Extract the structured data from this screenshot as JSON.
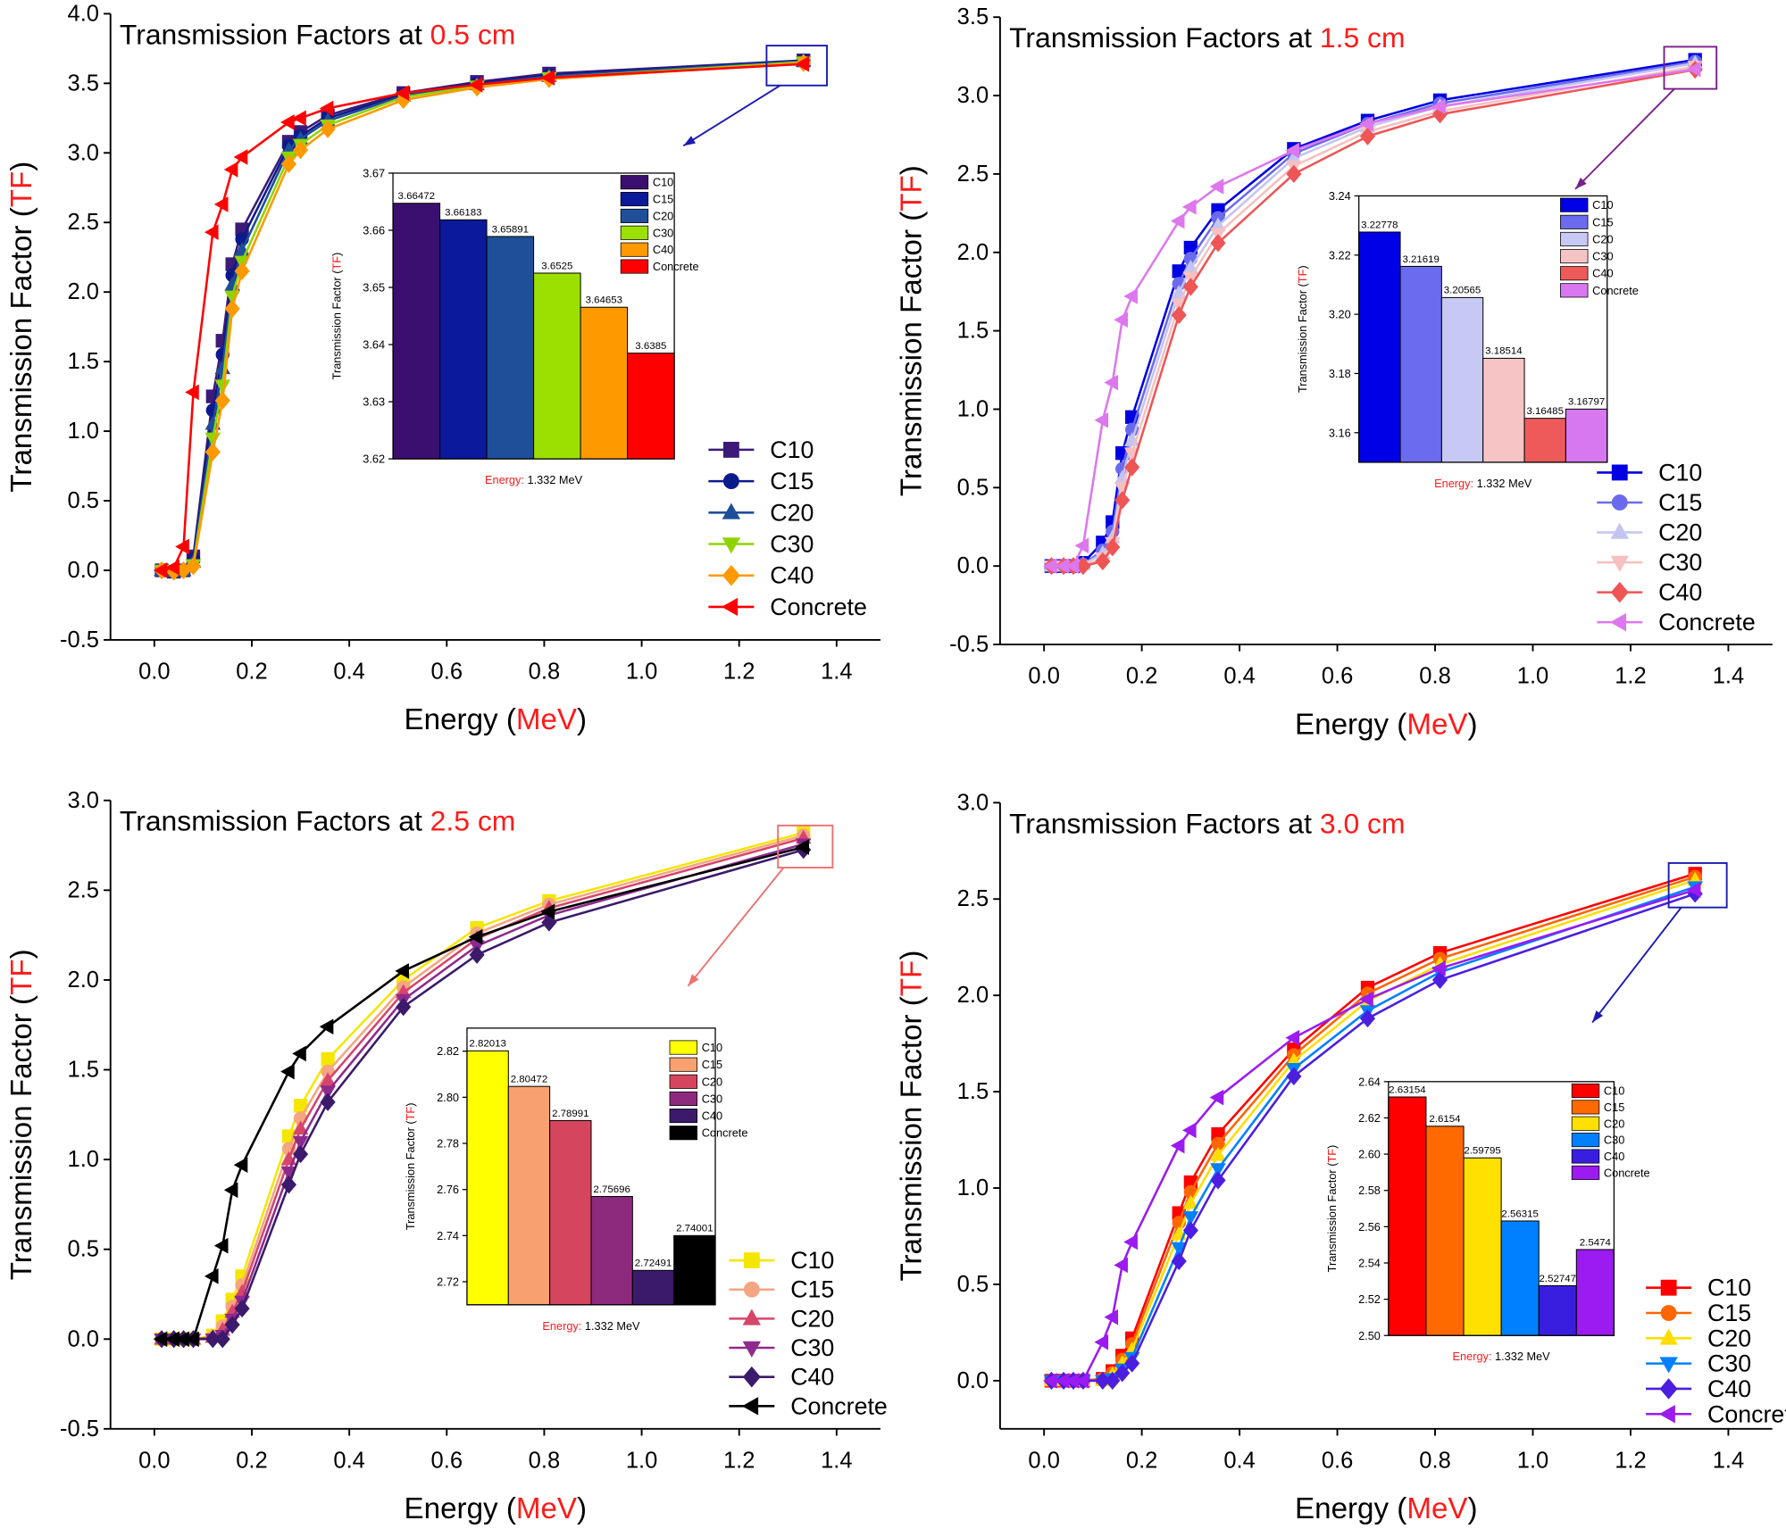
{
  "chart_data": [
    {
      "type": "line",
      "title": [
        "Transmission Factors at ",
        "0.5 cm"
      ],
      "xlabel": [
        "Energy (",
        "MeV",
        ")"
      ],
      "ylabel": [
        "Transmission Factor (",
        "TF",
        ")"
      ],
      "x": [
        0.015,
        0.04,
        0.06,
        0.08,
        0.12,
        0.14,
        0.16,
        0.18,
        0.276,
        0.3,
        0.356,
        0.511,
        0.662,
        0.81,
        1.332
      ],
      "xlim": [
        -0.09,
        1.49
      ],
      "xticks": [
        {
          "value": 0,
          "label": "0.0"
        },
        0.2,
        0.4,
        0.6,
        0.8,
        {
          "value": 1,
          "label": "1.0"
        },
        1.2,
        1.4
      ],
      "ylim": [
        -0.5,
        4.0
      ],
      "yticks": [
        -0.5,
        {
          "value": 0,
          "label": "0.0"
        },
        0.5,
        {
          "value": 1,
          "label": "1.0"
        },
        1.5,
        {
          "value": 2,
          "label": "2.0"
        },
        2.5,
        {
          "value": 3,
          "label": "3.0"
        },
        3.5,
        {
          "value": 4,
          "label": "4.0"
        }
      ],
      "legend": "lower right",
      "series": [
        {
          "name": "C10",
          "color": "#3d1a78",
          "marker": "square",
          "values": [
            0,
            -0.01,
            0,
            0.1,
            1.25,
            1.65,
            2.2,
            2.45,
            3.08,
            3.15,
            3.27,
            3.43,
            3.51,
            3.57,
            3.66472
          ]
        },
        {
          "name": "C15",
          "color": "#0d1a8c",
          "marker": "circle",
          "values": [
            0,
            -0.01,
            0,
            0.08,
            1.15,
            1.55,
            2.12,
            2.38,
            3.05,
            3.12,
            3.25,
            3.42,
            3.5,
            3.56,
            3.66183
          ]
        },
        {
          "name": "C20",
          "color": "#1f4e99",
          "marker": "triangle-up",
          "values": [
            0,
            -0.01,
            0,
            0.06,
            1.05,
            1.45,
            2.05,
            2.3,
            3.02,
            3.1,
            3.23,
            3.41,
            3.49,
            3.55,
            3.65891
          ]
        },
        {
          "name": "C30",
          "color": "#8fd400",
          "marker": "triangle-down",
          "values": [
            0,
            -0.01,
            0,
            0.04,
            0.95,
            1.33,
            1.97,
            2.22,
            2.97,
            3.06,
            3.2,
            3.4,
            3.48,
            3.54,
            3.6525
          ]
        },
        {
          "name": "C40",
          "color": "#ff9900",
          "marker": "diamond",
          "values": [
            0,
            -0.01,
            0,
            0.03,
            0.85,
            1.22,
            1.88,
            2.15,
            2.92,
            3.02,
            3.17,
            3.38,
            3.47,
            3.53,
            3.64653
          ]
        },
        {
          "name": "Concrete",
          "color": "#ff0000",
          "marker": "triangle-left",
          "values": [
            0,
            0.02,
            0.17,
            1.28,
            2.43,
            2.63,
            2.88,
            2.97,
            3.22,
            3.25,
            3.32,
            3.43,
            3.49,
            3.54,
            3.6385
          ]
        }
      ]
    },
    {
      "type": "bar",
      "ylabel": [
        "Transmission Factor (",
        "TF",
        ")"
      ],
      "xlabel": [
        "Energy:",
        " 1.332 MeV"
      ],
      "categories": [
        "C10",
        "C15",
        "C20",
        "C30",
        "C40",
        "Concrete"
      ],
      "values": [
        3.66472,
        3.66183,
        3.65891,
        3.6525,
        3.64653,
        3.6385
      ],
      "colors": [
        "#3b0f70",
        "#0a1a9a",
        "#1f4f99",
        "#9be000",
        "#ff9900",
        "#ff0000"
      ],
      "ylim": [
        3.62,
        3.67
      ],
      "yticks": [
        3.62,
        3.63,
        3.64,
        3.65,
        3.66,
        3.67
      ],
      "legend": "upper right"
    },
    {
      "type": "line",
      "title": [
        "Transmission Factors at ",
        "1.5 cm"
      ],
      "xlabel": [
        "Energy (",
        "MeV",
        ")"
      ],
      "ylabel": [
        "Transmission Factor (",
        "TF",
        ")"
      ],
      "x": [
        0.015,
        0.04,
        0.06,
        0.08,
        0.12,
        0.14,
        0.16,
        0.18,
        0.276,
        0.3,
        0.356,
        0.511,
        0.662,
        0.81,
        1.332
      ],
      "xlim": [
        -0.09,
        1.49
      ],
      "xticks": [
        {
          "value": 0,
          "label": "0.0"
        },
        0.2,
        0.4,
        0.6,
        0.8,
        {
          "value": 1,
          "label": "1.0"
        },
        1.2,
        1.4
      ],
      "ylim": [
        -0.5,
        3.5
      ],
      "yticks": [
        -0.5,
        {
          "value": 0,
          "label": "0.0"
        },
        0.5,
        {
          "value": 1,
          "label": "1.0"
        },
        1.5,
        {
          "value": 2,
          "label": "2.0"
        },
        2.5,
        {
          "value": 3,
          "label": "3.0"
        },
        3.5
      ],
      "legend": "lower right",
      "series": [
        {
          "name": "C10",
          "color": "#0000e0",
          "marker": "square",
          "values": [
            0,
            0,
            0,
            0.02,
            0.15,
            0.28,
            0.72,
            0.95,
            1.88,
            2.03,
            2.27,
            2.66,
            2.84,
            2.97,
            3.22778
          ]
        },
        {
          "name": "C15",
          "color": "#6a6aee",
          "marker": "circle",
          "values": [
            0,
            0,
            0,
            0.01,
            0.1,
            0.22,
            0.62,
            0.87,
            1.8,
            1.96,
            2.22,
            2.63,
            2.82,
            2.95,
            3.21619
          ]
        },
        {
          "name": "C20",
          "color": "#c4c4f2",
          "marker": "triangle-up",
          "values": [
            0,
            0,
            0,
            0.01,
            0.08,
            0.18,
            0.56,
            0.8,
            1.74,
            1.9,
            2.17,
            2.6,
            2.8,
            2.93,
            3.20565
          ]
        },
        {
          "name": "C30",
          "color": "#f7c0c0",
          "marker": "triangle-down",
          "values": [
            0,
            0,
            0,
            0,
            0.05,
            0.15,
            0.5,
            0.72,
            1.67,
            1.84,
            2.12,
            2.55,
            2.77,
            2.9,
            3.18514
          ]
        },
        {
          "name": "C40",
          "color": "#ee5555",
          "marker": "diamond",
          "values": [
            0,
            0,
            0,
            0,
            0.03,
            0.12,
            0.42,
            0.63,
            1.6,
            1.78,
            2.06,
            2.5,
            2.74,
            2.88,
            3.16485
          ]
        },
        {
          "name": "Concrete",
          "color": "#dd77ee",
          "marker": "triangle-left",
          "values": [
            0,
            0,
            0,
            0.13,
            0.93,
            1.17,
            1.57,
            1.72,
            2.2,
            2.29,
            2.42,
            2.65,
            2.82,
            2.93,
            3.16797
          ]
        }
      ]
    },
    {
      "type": "bar",
      "ylabel": [
        "Transmission Factor (",
        "TF",
        ")"
      ],
      "xlabel": [
        "Energy:",
        " 1.332 MeV"
      ],
      "categories": [
        "C10",
        "C15",
        "C20",
        "C30",
        "C40",
        "Concrete"
      ],
      "values": [
        3.22778,
        3.21619,
        3.20565,
        3.18514,
        3.16485,
        3.16797
      ],
      "colors": [
        "#0000e6",
        "#6b6bf0",
        "#c8c8f4",
        "#f6c4c4",
        "#ee5a5a",
        "#d878f0"
      ],
      "ylim": [
        3.15,
        3.24
      ],
      "yticks": [
        3.16,
        3.18,
        {
          "value": 3.2,
          "label": "3.20"
        },
        3.22,
        3.24
      ],
      "legend": "upper right"
    },
    {
      "type": "line",
      "title": [
        "Transmission Factors at ",
        "2.5 cm"
      ],
      "xlabel": [
        "Energy (",
        "MeV",
        ")"
      ],
      "ylabel": [
        "Transmission Factor (",
        "TF",
        ")"
      ],
      "x": [
        0.015,
        0.04,
        0.06,
        0.08,
        0.12,
        0.14,
        0.16,
        0.18,
        0.276,
        0.3,
        0.356,
        0.511,
        0.662,
        0.81,
        1.332
      ],
      "xlim": [
        -0.09,
        1.49
      ],
      "xticks": [
        {
          "value": 0,
          "label": "0.0"
        },
        0.2,
        0.4,
        0.6,
        0.8,
        {
          "value": 1,
          "label": "1.0"
        },
        1.2,
        1.4
      ],
      "ylim": [
        -0.5,
        3.0
      ],
      "yticks": [
        -0.5,
        {
          "value": 0,
          "label": "0.0"
        },
        0.5,
        {
          "value": 1,
          "label": "1.0"
        },
        1.5,
        {
          "value": 2,
          "label": "2.0"
        },
        2.5,
        {
          "value": 3,
          "label": "3.0"
        }
      ],
      "legend": "lower right",
      "series": [
        {
          "name": "C10",
          "color": "#f5e600",
          "marker": "square",
          "values": [
            0,
            0,
            0,
            0,
            0.02,
            0.1,
            0.22,
            0.35,
            1.13,
            1.3,
            1.56,
            2.0,
            2.29,
            2.44,
            2.82013
          ]
        },
        {
          "name": "C15",
          "color": "#f4a582",
          "marker": "circle",
          "values": [
            0,
            0,
            0,
            0,
            0.01,
            0.07,
            0.18,
            0.3,
            1.06,
            1.23,
            1.49,
            1.96,
            2.26,
            2.42,
            2.80472
          ]
        },
        {
          "name": "C20",
          "color": "#d6456a",
          "marker": "triangle-up",
          "values": [
            0,
            0,
            0,
            0,
            0.01,
            0.05,
            0.15,
            0.26,
            1.0,
            1.17,
            1.44,
            1.93,
            2.23,
            2.4,
            2.78991
          ]
        },
        {
          "name": "C30",
          "color": "#8e2a8e",
          "marker": "triangle-down",
          "values": [
            0,
            0,
            0,
            0,
            0,
            0.02,
            0.11,
            0.21,
            0.93,
            1.1,
            1.38,
            1.89,
            2.19,
            2.36,
            2.75696
          ]
        },
        {
          "name": "C40",
          "color": "#3b1a6b",
          "marker": "diamond",
          "values": [
            0,
            0,
            0,
            0,
            0,
            0,
            0.08,
            0.17,
            0.86,
            1.03,
            1.32,
            1.85,
            2.14,
            2.32,
            2.72491
          ]
        },
        {
          "name": "Concrete",
          "color": "#000000",
          "marker": "triangle-left",
          "values": [
            0,
            0,
            0,
            0,
            0.35,
            0.52,
            0.83,
            0.97,
            1.49,
            1.59,
            1.74,
            2.05,
            2.24,
            2.38,
            2.74001
          ]
        }
      ]
    },
    {
      "type": "bar",
      "ylabel": [
        "Transmission Factor (",
        "TF",
        ")"
      ],
      "xlabel": [
        "Energy:",
        " 1.332 MeV"
      ],
      "categories": [
        "C10",
        "C15",
        "C20",
        "C30",
        "C40",
        "Concrete"
      ],
      "values": [
        2.82013,
        2.80472,
        2.78991,
        2.75696,
        2.72491,
        2.74001
      ],
      "colors": [
        "#ffff00",
        "#f8a070",
        "#d6455e",
        "#8e2a7e",
        "#3b1a6b",
        "#000000"
      ],
      "ylim": [
        2.71,
        2.83
      ],
      "yticks": [
        2.72,
        2.74,
        2.76,
        2.78,
        {
          "value": 2.8,
          "label": "2.80"
        },
        2.82
      ],
      "legend": "upper right"
    },
    {
      "type": "line",
      "title": [
        "Transmission Factors at ",
        "3.0 cm"
      ],
      "xlabel": [
        "Energy (",
        "MeV",
        ")"
      ],
      "ylabel": [
        "Transmission Factor (",
        "TF",
        ")"
      ],
      "x": [
        0.015,
        0.04,
        0.06,
        0.08,
        0.12,
        0.14,
        0.16,
        0.18,
        0.276,
        0.3,
        0.356,
        0.511,
        0.662,
        0.81,
        1.332
      ],
      "xlim": [
        -0.09,
        1.49
      ],
      "xticks": [
        {
          "value": 0,
          "label": "0.0"
        },
        0.2,
        0.4,
        0.6,
        0.8,
        {
          "value": 1,
          "label": "1.0"
        },
        1.2,
        1.4
      ],
      "ylim": [
        -0.25,
        3.0
      ],
      "yticks": [
        {
          "value": 0,
          "label": "0.0"
        },
        0.5,
        {
          "value": 1,
          "label": "1.0"
        },
        1.5,
        {
          "value": 2,
          "label": "2.0"
        },
        2.5,
        {
          "value": 3,
          "label": "3.0"
        }
      ],
      "legend": "lower right",
      "series": [
        {
          "name": "C10",
          "color": "#ff0000",
          "marker": "square",
          "values": [
            0,
            0,
            0,
            0,
            0.01,
            0.05,
            0.13,
            0.22,
            0.87,
            1.03,
            1.28,
            1.72,
            2.04,
            2.22,
            2.63154
          ]
        },
        {
          "name": "C15",
          "color": "#ff6600",
          "marker": "circle",
          "values": [
            0,
            0,
            0,
            0,
            0.01,
            0.04,
            0.11,
            0.19,
            0.82,
            0.98,
            1.23,
            1.69,
            2.01,
            2.19,
            2.6154
          ]
        },
        {
          "name": "C20",
          "color": "#ffdd00",
          "marker": "triangle-up",
          "values": [
            0,
            0,
            0,
            0,
            0,
            0.03,
            0.09,
            0.16,
            0.76,
            0.92,
            1.17,
            1.66,
            1.97,
            2.16,
            2.59795
          ]
        },
        {
          "name": "C30",
          "color": "#0080ff",
          "marker": "triangle-down",
          "values": [
            0,
            0,
            0,
            0,
            0,
            0.01,
            0.06,
            0.12,
            0.69,
            0.85,
            1.1,
            1.62,
            1.92,
            2.12,
            2.56315
          ]
        },
        {
          "name": "C40",
          "color": "#4b1ee0",
          "marker": "diamond",
          "values": [
            0,
            0,
            0,
            0,
            0,
            0,
            0.04,
            0.09,
            0.62,
            0.78,
            1.04,
            1.58,
            1.88,
            2.08,
            2.52747
          ]
        },
        {
          "name": "Concrete",
          "color": "#9b1bf0",
          "marker": "triangle-left",
          "values": [
            0,
            0,
            0,
            0,
            0.2,
            0.33,
            0.6,
            0.72,
            1.22,
            1.3,
            1.47,
            1.78,
            1.98,
            2.14,
            2.5474
          ]
        }
      ]
    },
    {
      "type": "bar",
      "ylabel": [
        "Transmission Factor (",
        "TF",
        ")"
      ],
      "xlabel": [
        "Energy:",
        " 1.332 MeV"
      ],
      "categories": [
        "C10",
        "C15",
        "C20",
        "C30",
        "C40",
        "Concrete"
      ],
      "values": [
        2.63154,
        2.6154,
        2.59795,
        2.56315,
        2.52747,
        2.5474
      ],
      "colors": [
        "#ff0000",
        "#ff6a00",
        "#ffe000",
        "#0080ff",
        "#3a1ee0",
        "#9b1bf0"
      ],
      "ylim": [
        2.5,
        2.64
      ],
      "yticks": [
        {
          "value": 2.5,
          "label": "2.50"
        },
        2.52,
        2.54,
        2.56,
        2.58,
        {
          "value": 2.6,
          "label": "2.60"
        },
        2.62,
        2.64
      ],
      "legend": "upper right"
    }
  ]
}
